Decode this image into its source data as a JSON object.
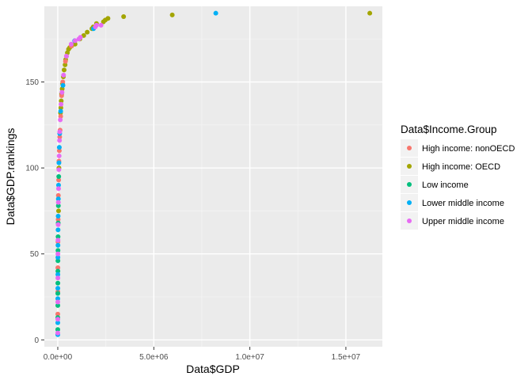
{
  "chart_data": {
    "type": "scatter",
    "xlabel": "Data$GDP",
    "ylabel": "Data$GDP.rankings",
    "xlim": [
      -700000,
      16900000
    ],
    "ylim": [
      -4,
      194
    ],
    "x_ticks": [
      0,
      5000000,
      10000000,
      15000000
    ],
    "x_tick_labels": [
      "0.0e+00",
      "5.0e+06",
      "1.0e+07",
      "1.5e+07"
    ],
    "y_ticks": [
      0,
      50,
      100,
      150
    ],
    "y_tick_labels": [
      "0",
      "50",
      "100",
      "150"
    ],
    "grid": true,
    "legend": {
      "title": "Data$Income.Group",
      "placement": "right",
      "entries": [
        "High income: nonOECD",
        "High income: OECD",
        "Low income",
        "Lower middle income",
        "Upper middle income"
      ]
    },
    "colors": {
      "High income: nonOECD": "#F8766D",
      "High income: OECD": "#A3A500",
      "Low income": "#00BF7D",
      "Lower middle income": "#00B0F6",
      "Upper middle income": "#E76BF3"
    },
    "series": [
      {
        "name": "High income: OECD",
        "points": [
          [
            16244600,
            190
          ],
          [
            5960180,
            189
          ],
          [
            3428131,
            188
          ],
          [
            2612878,
            187
          ],
          [
            2471784,
            186
          ],
          [
            2378000,
            185
          ],
          [
            2014670,
            184
          ],
          [
            1841710,
            182
          ],
          [
            1780000,
            181
          ],
          [
            1532408,
            179
          ],
          [
            1352057,
            177
          ],
          [
            1150000,
            175
          ],
          [
            900000,
            172
          ],
          [
            720000,
            171
          ],
          [
            620000,
            170
          ],
          [
            560000,
            169
          ],
          [
            500000,
            167
          ],
          [
            450000,
            165
          ],
          [
            410000,
            163
          ],
          [
            380000,
            160
          ],
          [
            330000,
            157
          ],
          [
            290000,
            153
          ],
          [
            250000,
            149
          ],
          [
            230000,
            146
          ],
          [
            200000,
            143
          ],
          [
            180000,
            139
          ],
          [
            160000,
            135
          ],
          [
            140000,
            132
          ],
          [
            60000,
            100
          ],
          [
            40000,
            75
          ]
        ]
      },
      {
        "name": "High income: nonOECD",
        "points": [
          [
            700000,
            171
          ],
          [
            400000,
            162
          ],
          [
            260000,
            150
          ],
          [
            200000,
            142
          ],
          [
            150000,
            130
          ],
          [
            120000,
            122
          ],
          [
            100000,
            118
          ],
          [
            80000,
            110
          ],
          [
            60000,
            104
          ],
          [
            45000,
            93
          ],
          [
            30000,
            84
          ],
          [
            20000,
            70
          ],
          [
            10000,
            57
          ],
          [
            5000,
            42
          ],
          [
            2000,
            28
          ],
          [
            1000,
            15
          ]
        ]
      },
      {
        "name": "Low income",
        "points": [
          [
            50000,
            95
          ],
          [
            30000,
            78
          ],
          [
            22000,
            68
          ],
          [
            15000,
            60
          ],
          [
            11000,
            52
          ],
          [
            8000,
            46
          ],
          [
            6000,
            40
          ],
          [
            4000,
            33
          ],
          [
            3000,
            27
          ],
          [
            2000,
            20
          ],
          [
            1000,
            13
          ],
          [
            500,
            6
          ]
        ]
      },
      {
        "name": "Lower middle income",
        "points": [
          [
            8227103,
            190
          ],
          [
            1858740,
            181
          ],
          [
            878043,
            174
          ],
          [
            270000,
            148
          ],
          [
            150000,
            133
          ],
          [
            100000,
            120
          ],
          [
            80000,
            112
          ],
          [
            60000,
            103
          ],
          [
            40000,
            90
          ],
          [
            30000,
            82
          ],
          [
            20000,
            72
          ],
          [
            15000,
            64
          ],
          [
            10000,
            55
          ],
          [
            7000,
            48
          ],
          [
            5000,
            38
          ],
          [
            3000,
            30
          ],
          [
            2000,
            24
          ],
          [
            800,
            10
          ],
          [
            300,
            3
          ]
        ]
      },
      {
        "name": "Upper middle income",
        "points": [
          [
            2252664,
            183
          ],
          [
            2014775,
            183
          ],
          [
            1954667,
            182
          ],
          [
            1177000,
            176
          ],
          [
            1100000,
            175
          ],
          [
            900000,
            174
          ],
          [
            700000,
            172
          ],
          [
            450000,
            165
          ],
          [
            300000,
            154
          ],
          [
            220000,
            144
          ],
          [
            170000,
            137
          ],
          [
            130000,
            128
          ],
          [
            100000,
            121
          ],
          [
            90000,
            116
          ],
          [
            70000,
            107
          ],
          [
            55000,
            99
          ],
          [
            40000,
            88
          ],
          [
            30000,
            80
          ],
          [
            20000,
            67
          ],
          [
            12000,
            58
          ],
          [
            8000,
            50
          ],
          [
            5000,
            36
          ],
          [
            2500,
            22
          ],
          [
            1200,
            12
          ],
          [
            400,
            4
          ]
        ]
      }
    ]
  }
}
